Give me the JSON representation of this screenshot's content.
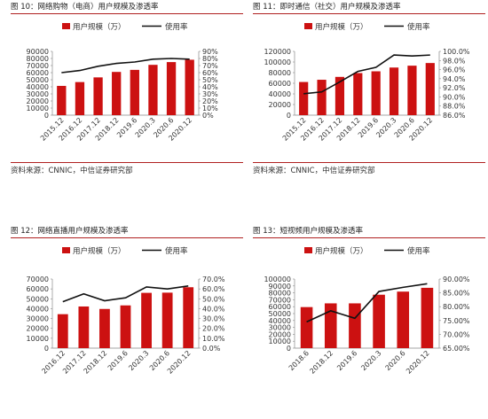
{
  "panels": [
    {
      "title": "图 10：网络购物（电商）用户规模及渗透率",
      "source": "资料来源：CNNIC，中信证券研究部",
      "legend_bar": "用户规模（万）",
      "legend_line": "使用率",
      "chart_data": {
        "type": "bar",
        "categories": [
          "2015.12",
          "2016.12",
          "2017.12",
          "2018.12",
          "2019.6",
          "2020.3",
          "2020.6",
          "2020.12"
        ],
        "series": [
          {
            "name": "用户规模（万）",
            "type": "bar",
            "axis": "left",
            "values": [
              41300,
              46700,
              53300,
              61000,
              63900,
              71000,
              74900,
              78200
            ]
          },
          {
            "name": "使用率",
            "type": "line",
            "axis": "right",
            "values": [
              60,
              63,
              69,
              73,
              75,
              79,
              80,
              79
            ]
          }
        ],
        "ylim_left": [
          0,
          90000
        ],
        "yticks_left": [
          "0",
          "10000",
          "20000",
          "30000",
          "40000",
          "50000",
          "60000",
          "70000",
          "80000",
          "90000"
        ],
        "ylim_right": [
          0,
          90
        ],
        "yticks_right": [
          "0%",
          "10%",
          "20%",
          "30%",
          "40%",
          "50%",
          "60%",
          "70%",
          "80%",
          "90%"
        ],
        "colors": {
          "bar": "#cc1111",
          "line": "#111111"
        }
      }
    },
    {
      "title": "图 11：即时通信（社交）用户规模及渗透率",
      "source": "资料来源：CNNIC，中信证券研究部",
      "legend_bar": "用户规模（万）",
      "legend_line": "使用率",
      "chart_data": {
        "type": "bar",
        "categories": [
          "2015.12",
          "2016.12",
          "2017.12",
          "2018.12",
          "2019.6",
          "2020.3",
          "2020.6",
          "2020.12"
        ],
        "series": [
          {
            "name": "用户规模（万）",
            "type": "bar",
            "axis": "left",
            "values": [
              62400,
              66600,
              72000,
              79200,
              82500,
              89600,
              93100,
              98100
            ]
          },
          {
            "name": "使用率",
            "type": "line",
            "axis": "right",
            "values": [
              90.7,
              91.1,
              93.3,
              95.6,
              96.5,
              99.2,
              99.0,
              99.2
            ]
          }
        ],
        "ylim_left": [
          0,
          120000
        ],
        "yticks_left": [
          "0",
          "20000",
          "40000",
          "60000",
          "80000",
          "100000",
          "120000"
        ],
        "ylim_right": [
          86,
          100
        ],
        "yticks_right": [
          "86.0%",
          "88.0%",
          "90.0%",
          "92.0%",
          "94.0%",
          "96.0%",
          "98.0%",
          "100.0%"
        ],
        "colors": {
          "bar": "#cc1111",
          "line": "#111111"
        }
      }
    },
    {
      "title": "图 12：网络直播用户规模及渗透率",
      "source": "",
      "legend_bar": "用户规模（万）",
      "legend_line": "使用率",
      "chart_data": {
        "type": "bar",
        "categories": [
          "2016.12",
          "2017.12",
          "2018.12",
          "2019.6",
          "2020.3",
          "2020.6",
          "2020.12"
        ],
        "series": [
          {
            "name": "用户规模（万）",
            "type": "bar",
            "axis": "left",
            "values": [
              34400,
              42200,
              39700,
              43300,
              56000,
              56200,
              61700
            ]
          },
          {
            "name": "使用率",
            "type": "line",
            "axis": "right",
            "values": [
              47,
              55,
              48,
              51,
              62,
              60,
              63
            ]
          }
        ],
        "ylim_left": [
          0,
          70000
        ],
        "yticks_left": [
          "0",
          "10000",
          "20000",
          "30000",
          "40000",
          "50000",
          "60000",
          "70000"
        ],
        "ylim_right": [
          0,
          70
        ],
        "yticks_right": [
          "0.0%",
          "10.0%",
          "20.0%",
          "30.0%",
          "40.0%",
          "50.0%",
          "60.0%",
          "70.0%"
        ],
        "colors": {
          "bar": "#cc1111",
          "line": "#111111"
        }
      }
    },
    {
      "title": "图 13：短视频用户规模及渗透率",
      "source": "",
      "legend_bar": "用户规模（万）",
      "legend_line": "使用率",
      "chart_data": {
        "type": "bar",
        "categories": [
          "2018.6",
          "2018.12",
          "2019.6",
          "2020.3",
          "2020.6",
          "2020.12"
        ],
        "series": [
          {
            "name": "用户规模（万）",
            "type": "bar",
            "axis": "left",
            "values": [
              59400,
              64800,
              64800,
              77300,
              81800,
              87300
            ]
          },
          {
            "name": "使用率",
            "type": "line",
            "axis": "right",
            "values": [
              74.5,
              78.5,
              75.8,
              85.5,
              87.0,
              88.3
            ]
          }
        ],
        "ylim_left": [
          0,
          100000
        ],
        "yticks_left": [
          "0",
          "10000",
          "20000",
          "30000",
          "40000",
          "50000",
          "60000",
          "70000",
          "80000",
          "90000",
          "100000"
        ],
        "ylim_right": [
          65,
          90
        ],
        "yticks_right": [
          "65.00%",
          "70.00%",
          "75.00%",
          "80.00%",
          "85.00%",
          "90.00%"
        ],
        "colors": {
          "bar": "#cc1111",
          "line": "#111111"
        }
      }
    }
  ]
}
